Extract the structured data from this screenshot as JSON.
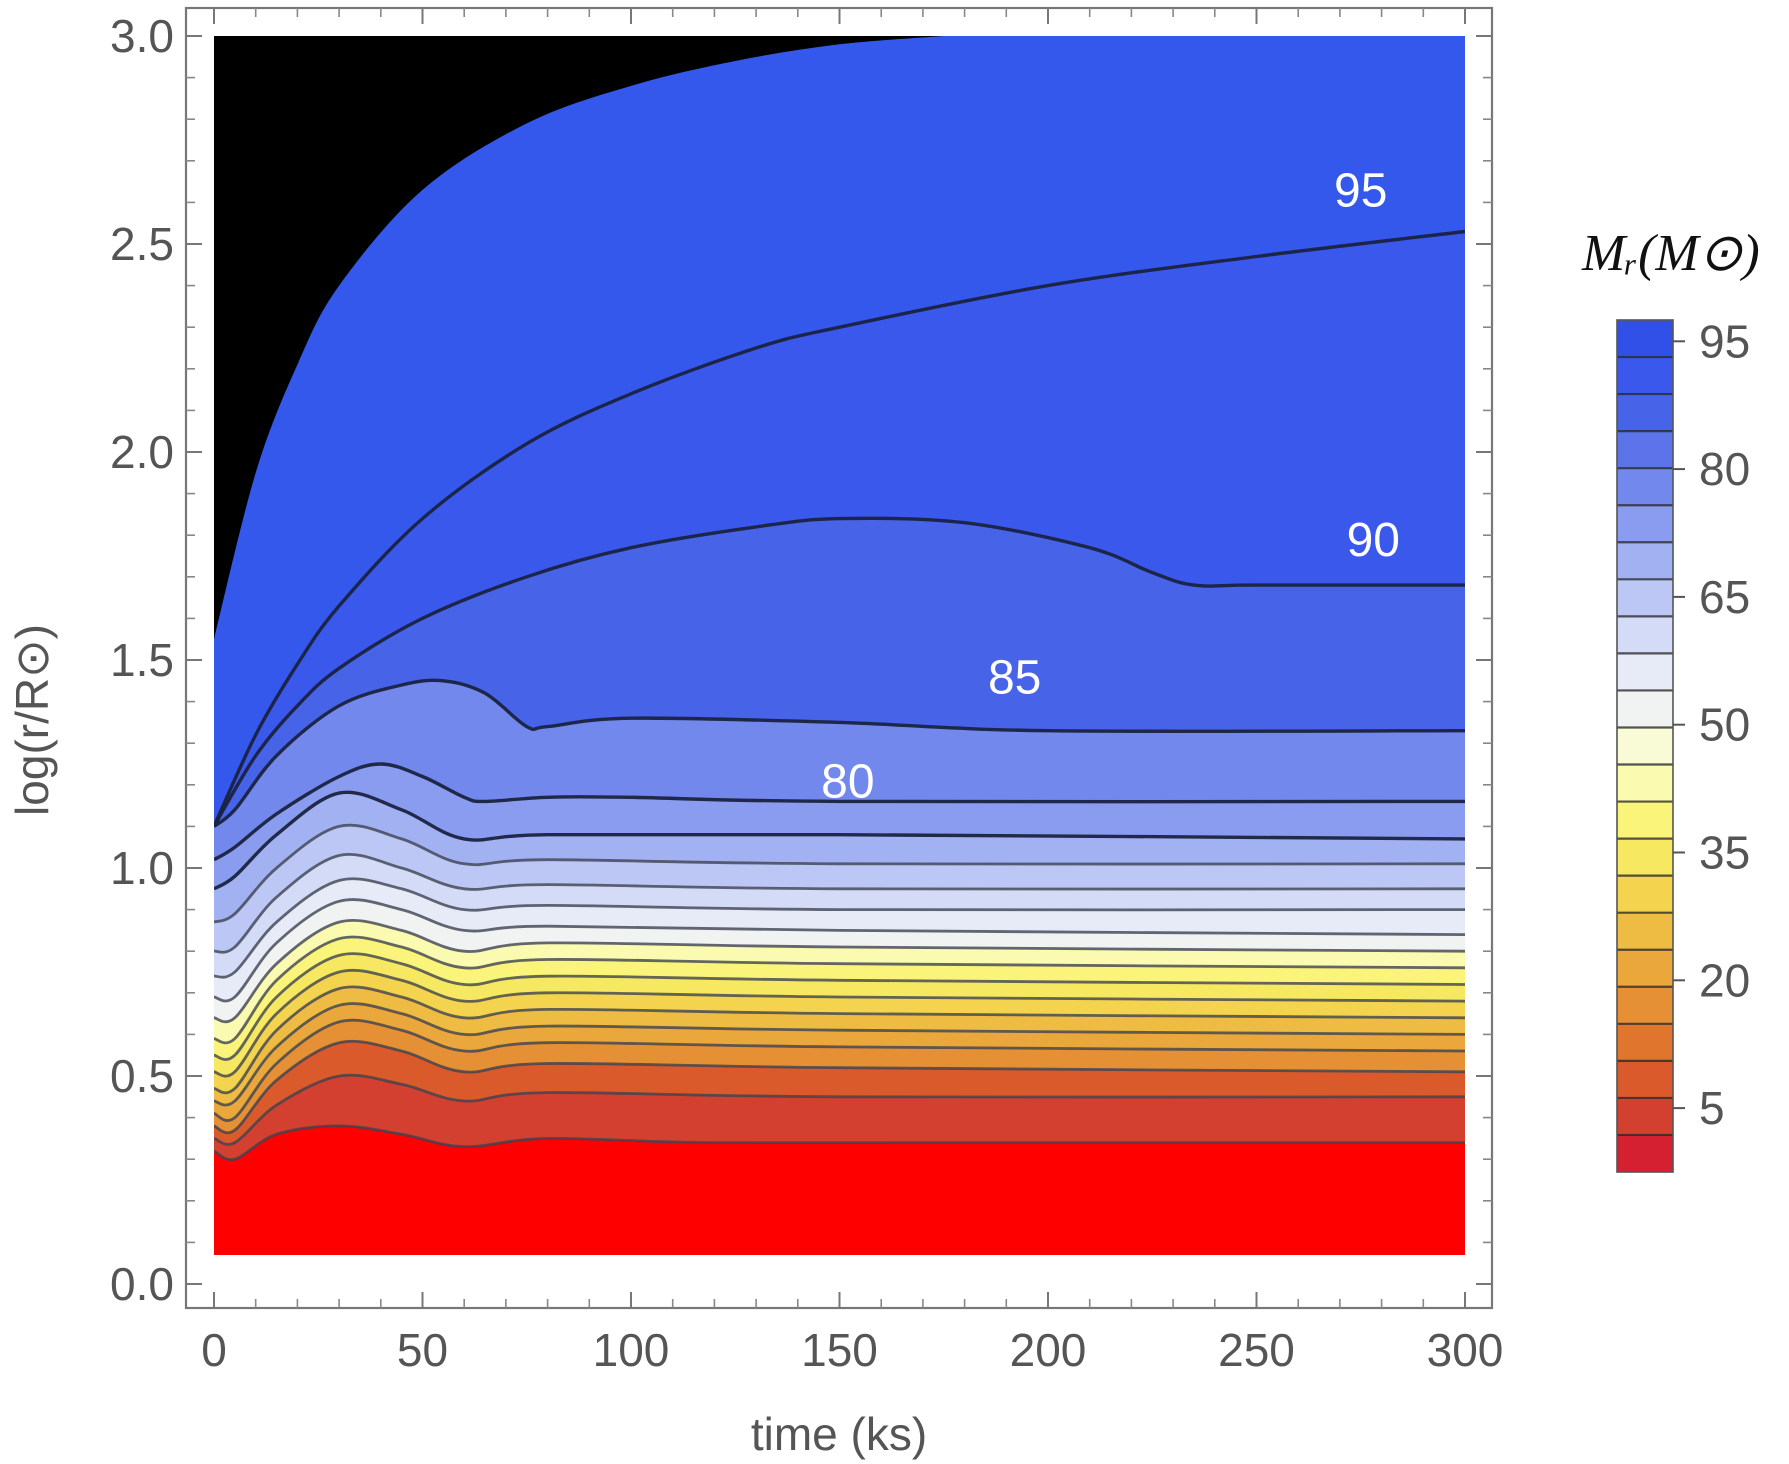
{
  "chart_data": {
    "type": "contour",
    "title": "",
    "xlabel": "time (ks)",
    "ylabel": "log(r/R⊙)",
    "xlim": [
      0,
      300
    ],
    "ylim": [
      0,
      3.0
    ],
    "x_ticks": [
      0,
      50,
      100,
      150,
      200,
      250,
      300
    ],
    "x_tick_labels": [
      "0",
      "50",
      "100",
      "150",
      "200",
      "250",
      "300"
    ],
    "y_ticks": [
      0.0,
      0.5,
      1.0,
      1.5,
      2.0,
      2.5,
      3.0
    ],
    "y_tick_labels": [
      "0.0",
      "0.5",
      "1.0",
      "1.5",
      "2.0",
      "2.5",
      "3.0"
    ],
    "data_extent": {
      "t": [
        0,
        300
      ],
      "logr": [
        0.07,
        3.0
      ]
    },
    "inner_boundary": [
      [
        0,
        0.2
      ],
      [
        300,
        0.07
      ]
    ],
    "levels": [
      0,
      5,
      10,
      15,
      20,
      25,
      30,
      35,
      40,
      45,
      50,
      55,
      60,
      65,
      70,
      75,
      80,
      85,
      90,
      95,
      100
    ],
    "contours": [
      {
        "level": 5,
        "points": [
          [
            0,
            0.32
          ],
          [
            5,
            0.3
          ],
          [
            15,
            0.36
          ],
          [
            30,
            0.38
          ],
          [
            45,
            0.36
          ],
          [
            60,
            0.33
          ],
          [
            80,
            0.35
          ],
          [
            120,
            0.34
          ],
          [
            200,
            0.34
          ],
          [
            300,
            0.34
          ]
        ]
      },
      {
        "level": 10,
        "points": [
          [
            0,
            0.35
          ],
          [
            5,
            0.34
          ],
          [
            15,
            0.43
          ],
          [
            30,
            0.5
          ],
          [
            45,
            0.48
          ],
          [
            60,
            0.44
          ],
          [
            80,
            0.46
          ],
          [
            150,
            0.45
          ],
          [
            300,
            0.45
          ]
        ]
      },
      {
        "level": 15,
        "points": [
          [
            0,
            0.38
          ],
          [
            5,
            0.37
          ],
          [
            15,
            0.49
          ],
          [
            30,
            0.58
          ],
          [
            45,
            0.56
          ],
          [
            60,
            0.51
          ],
          [
            80,
            0.53
          ],
          [
            150,
            0.52
          ],
          [
            300,
            0.51
          ]
        ]
      },
      {
        "level": 20,
        "points": [
          [
            0,
            0.41
          ],
          [
            5,
            0.4
          ],
          [
            15,
            0.53
          ],
          [
            30,
            0.63
          ],
          [
            45,
            0.61
          ],
          [
            60,
            0.56
          ],
          [
            80,
            0.58
          ],
          [
            150,
            0.57
          ],
          [
            300,
            0.56
          ]
        ]
      },
      {
        "level": 25,
        "points": [
          [
            0,
            0.44
          ],
          [
            5,
            0.44
          ],
          [
            15,
            0.57
          ],
          [
            30,
            0.67
          ],
          [
            45,
            0.65
          ],
          [
            60,
            0.6
          ],
          [
            80,
            0.62
          ],
          [
            150,
            0.61
          ],
          [
            300,
            0.6
          ]
        ]
      },
      {
        "level": 30,
        "points": [
          [
            0,
            0.47
          ],
          [
            5,
            0.47
          ],
          [
            15,
            0.61
          ],
          [
            30,
            0.71
          ],
          [
            45,
            0.69
          ],
          [
            60,
            0.64
          ],
          [
            80,
            0.66
          ],
          [
            150,
            0.65
          ],
          [
            300,
            0.64
          ]
        ]
      },
      {
        "level": 35,
        "points": [
          [
            0,
            0.51
          ],
          [
            5,
            0.51
          ],
          [
            15,
            0.65
          ],
          [
            30,
            0.75
          ],
          [
            45,
            0.73
          ],
          [
            60,
            0.68
          ],
          [
            80,
            0.7
          ],
          [
            150,
            0.69
          ],
          [
            300,
            0.68
          ]
        ]
      },
      {
        "level": 40,
        "points": [
          [
            0,
            0.55
          ],
          [
            5,
            0.55
          ],
          [
            15,
            0.69
          ],
          [
            30,
            0.79
          ],
          [
            45,
            0.77
          ],
          [
            60,
            0.72
          ],
          [
            80,
            0.74
          ],
          [
            150,
            0.73
          ],
          [
            300,
            0.72
          ]
        ]
      },
      {
        "level": 45,
        "points": [
          [
            0,
            0.59
          ],
          [
            5,
            0.59
          ],
          [
            15,
            0.73
          ],
          [
            30,
            0.83
          ],
          [
            45,
            0.81
          ],
          [
            60,
            0.76
          ],
          [
            80,
            0.78
          ],
          [
            150,
            0.77
          ],
          [
            300,
            0.76
          ]
        ]
      },
      {
        "level": 50,
        "points": [
          [
            0,
            0.64
          ],
          [
            5,
            0.64
          ],
          [
            15,
            0.77
          ],
          [
            30,
            0.87
          ],
          [
            45,
            0.85
          ],
          [
            60,
            0.8
          ],
          [
            80,
            0.82
          ],
          [
            150,
            0.81
          ],
          [
            300,
            0.8
          ]
        ]
      },
      {
        "level": 55,
        "points": [
          [
            0,
            0.69
          ],
          [
            5,
            0.69
          ],
          [
            15,
            0.82
          ],
          [
            30,
            0.92
          ],
          [
            45,
            0.9
          ],
          [
            60,
            0.85
          ],
          [
            80,
            0.86
          ],
          [
            150,
            0.85
          ],
          [
            300,
            0.84
          ]
        ]
      },
      {
        "level": 60,
        "points": [
          [
            0,
            0.74
          ],
          [
            5,
            0.75
          ],
          [
            15,
            0.87
          ],
          [
            30,
            0.97
          ],
          [
            45,
            0.95
          ],
          [
            60,
            0.9
          ],
          [
            80,
            0.91
          ],
          [
            150,
            0.9
          ],
          [
            300,
            0.9
          ]
        ]
      },
      {
        "level": 65,
        "points": [
          [
            0,
            0.8
          ],
          [
            5,
            0.81
          ],
          [
            15,
            0.93
          ],
          [
            30,
            1.03
          ],
          [
            45,
            1.0
          ],
          [
            60,
            0.95
          ],
          [
            80,
            0.96
          ],
          [
            150,
            0.95
          ],
          [
            300,
            0.95
          ]
        ]
      },
      {
        "level": 70,
        "points": [
          [
            0,
            0.87
          ],
          [
            5,
            0.89
          ],
          [
            15,
            1.0
          ],
          [
            30,
            1.1
          ],
          [
            45,
            1.07
          ],
          [
            60,
            1.01
          ],
          [
            80,
            1.02
          ],
          [
            150,
            1.01
          ],
          [
            300,
            1.01
          ]
        ]
      },
      {
        "level": 75,
        "points": [
          [
            0,
            0.95
          ],
          [
            5,
            0.98
          ],
          [
            15,
            1.08
          ],
          [
            30,
            1.18
          ],
          [
            45,
            1.14
          ],
          [
            60,
            1.07
          ],
          [
            80,
            1.08
          ],
          [
            150,
            1.08
          ],
          [
            300,
            1.07
          ]
        ]
      },
      {
        "level": 80,
        "points": [
          [
            0,
            1.02
          ],
          [
            5,
            1.05
          ],
          [
            15,
            1.13
          ],
          [
            30,
            1.22
          ],
          [
            40,
            1.25
          ],
          [
            50,
            1.22
          ],
          [
            60,
            1.17
          ],
          [
            65,
            1.16
          ],
          [
            80,
            1.17
          ],
          [
            100,
            1.17
          ],
          [
            150,
            1.16
          ],
          [
            300,
            1.16
          ]
        ]
      },
      {
        "level": 85,
        "points": [
          [
            0,
            1.1
          ],
          [
            5,
            1.14
          ],
          [
            15,
            1.27
          ],
          [
            30,
            1.39
          ],
          [
            45,
            1.44
          ],
          [
            55,
            1.45
          ],
          [
            65,
            1.42
          ],
          [
            75,
            1.34
          ],
          [
            80,
            1.34
          ],
          [
            100,
            1.36
          ],
          [
            150,
            1.35
          ],
          [
            200,
            1.33
          ],
          [
            300,
            1.33
          ]
        ]
      },
      {
        "level": 90,
        "points": [
          [
            0,
            1.1
          ],
          [
            10,
            1.27
          ],
          [
            20,
            1.39
          ],
          [
            30,
            1.48
          ],
          [
            50,
            1.6
          ],
          [
            75,
            1.7
          ],
          [
            100,
            1.77
          ],
          [
            130,
            1.82
          ],
          [
            150,
            1.84
          ],
          [
            180,
            1.83
          ],
          [
            210,
            1.77
          ],
          [
            225,
            1.71
          ],
          [
            235,
            1.68
          ],
          [
            250,
            1.68
          ],
          [
            300,
            1.68
          ]
        ]
      },
      {
        "level": 95,
        "points": [
          [
            0,
            1.1
          ],
          [
            10,
            1.32
          ],
          [
            20,
            1.49
          ],
          [
            30,
            1.63
          ],
          [
            50,
            1.84
          ],
          [
            75,
            2.02
          ],
          [
            100,
            2.14
          ],
          [
            130,
            2.25
          ],
          [
            150,
            2.3
          ],
          [
            200,
            2.4
          ],
          [
            250,
            2.47
          ],
          [
            300,
            2.53
          ]
        ]
      }
    ],
    "contour_labels": [
      {
        "text": "95",
        "t": 275,
        "logr": 2.59
      },
      {
        "text": "90",
        "t": 278,
        "logr": 1.75
      },
      {
        "text": "85",
        "t": 192,
        "logr": 1.42
      },
      {
        "text": "80",
        "t": 152,
        "logr": 1.17
      }
    ],
    "black_region_boundary": [
      [
        0,
        1.55
      ],
      [
        10,
        1.95
      ],
      [
        20,
        2.21
      ],
      [
        30,
        2.4
      ],
      [
        50,
        2.63
      ],
      [
        75,
        2.79
      ],
      [
        100,
        2.88
      ],
      [
        125,
        2.94
      ],
      [
        150,
        2.98
      ],
      [
        175,
        3.0
      ]
    ],
    "legend": {
      "title": "Mᵣ(M⊙)",
      "placement": "right",
      "min": 0,
      "max": 100,
      "tick_values": [
        5,
        20,
        35,
        50,
        65,
        80,
        95
      ],
      "tick_labels": [
        "5",
        "20",
        "35",
        "50",
        "65",
        "80",
        "95"
      ],
      "band_colors": [
        "#d42030",
        "#d4402f",
        "#da5a2c",
        "#e0762e",
        "#e69036",
        "#eaa73c",
        "#eebc42",
        "#f4d44e",
        "#f7e862",
        "#fbf47a",
        "#fafab0",
        "#f9fbd6",
        "#f1f2f2",
        "#e7eaf7",
        "#d4dbf7",
        "#bcc7f5",
        "#a2b1f2",
        "#8a9cef",
        "#7388ec",
        "#5d73e9",
        "#4763e8",
        "#3a58ec",
        "#3150e8"
      ],
      "fill_colors": {
        "red": "#ff0000",
        "black": "#000000",
        "outer_blue": "#3558ec"
      }
    },
    "grid": false
  }
}
